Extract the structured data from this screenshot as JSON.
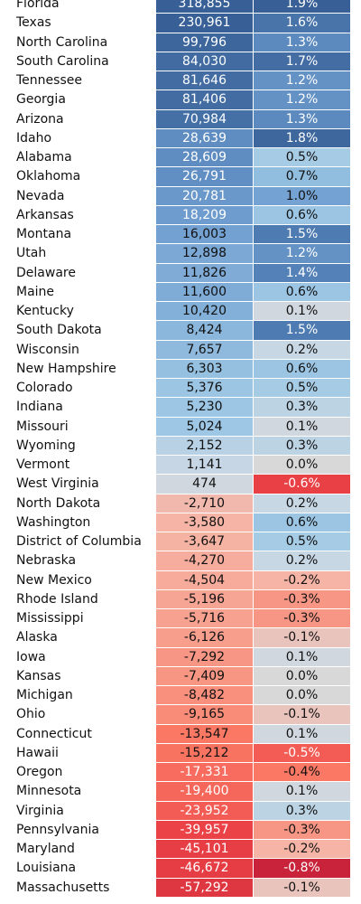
{
  "chart_data": {
    "type": "heatmap",
    "columns": [
      "value",
      "percent"
    ],
    "rows": [
      {
        "state": "Florida",
        "value": "318,855",
        "pct": "1.9%"
      },
      {
        "state": "Texas",
        "value": "230,961",
        "pct": "1.6%"
      },
      {
        "state": "North Carolina",
        "value": "99,796",
        "pct": "1.3%"
      },
      {
        "state": "South Carolina",
        "value": "84,030",
        "pct": "1.7%"
      },
      {
        "state": "Tennessee",
        "value": "81,646",
        "pct": "1.2%"
      },
      {
        "state": "Georgia",
        "value": "81,406",
        "pct": "1.2%"
      },
      {
        "state": "Arizona",
        "value": "70,984",
        "pct": "1.3%"
      },
      {
        "state": "Idaho",
        "value": "28,639",
        "pct": "1.8%"
      },
      {
        "state": "Alabama",
        "value": "28,609",
        "pct": "0.5%"
      },
      {
        "state": "Oklahoma",
        "value": "26,791",
        "pct": "0.7%"
      },
      {
        "state": "Nevada",
        "value": "20,781",
        "pct": "1.0%"
      },
      {
        "state": "Arkansas",
        "value": "18,209",
        "pct": "0.6%"
      },
      {
        "state": "Montana",
        "value": "16,003",
        "pct": "1.5%"
      },
      {
        "state": "Utah",
        "value": "12,898",
        "pct": "1.2%"
      },
      {
        "state": "Delaware",
        "value": "11,826",
        "pct": "1.4%"
      },
      {
        "state": "Maine",
        "value": "11,600",
        "pct": "0.6%"
      },
      {
        "state": "Kentucky",
        "value": "10,420",
        "pct": "0.1%"
      },
      {
        "state": "South Dakota",
        "value": "8,424",
        "pct": "1.5%"
      },
      {
        "state": "Wisconsin",
        "value": "7,657",
        "pct": "0.2%"
      },
      {
        "state": "New Hampshire",
        "value": "6,303",
        "pct": "0.6%"
      },
      {
        "state": "Colorado",
        "value": "5,376",
        "pct": "0.5%"
      },
      {
        "state": "Indiana",
        "value": "5,230",
        "pct": "0.3%"
      },
      {
        "state": "Missouri",
        "value": "5,024",
        "pct": "0.1%"
      },
      {
        "state": "Wyoming",
        "value": "2,152",
        "pct": "0.3%"
      },
      {
        "state": "Vermont",
        "value": "1,141",
        "pct": "0.0%"
      },
      {
        "state": "West Virginia",
        "value": "474",
        "pct": "-0.6%"
      },
      {
        "state": "North Dakota",
        "value": "-2,710",
        "pct": "0.2%"
      },
      {
        "state": "Washington",
        "value": "-3,580",
        "pct": "0.6%"
      },
      {
        "state": "District of Columbia",
        "value": "-3,647",
        "pct": "0.5%"
      },
      {
        "state": "Nebraska",
        "value": "-4,270",
        "pct": "0.2%"
      },
      {
        "state": "New Mexico",
        "value": "-4,504",
        "pct": "-0.2%"
      },
      {
        "state": "Rhode Island",
        "value": "-5,196",
        "pct": "-0.3%"
      },
      {
        "state": "Mississippi",
        "value": "-5,716",
        "pct": "-0.3%"
      },
      {
        "state": "Alaska",
        "value": "-6,126",
        "pct": "-0.1%"
      },
      {
        "state": "Iowa",
        "value": "-7,292",
        "pct": "0.1%"
      },
      {
        "state": "Kansas",
        "value": "-7,409",
        "pct": "0.0%"
      },
      {
        "state": "Michigan",
        "value": "-8,482",
        "pct": "0.0%"
      },
      {
        "state": "Ohio",
        "value": "-9,165",
        "pct": "-0.1%"
      },
      {
        "state": "Connecticut",
        "value": "-13,547",
        "pct": "0.1%"
      },
      {
        "state": "Hawaii",
        "value": "-15,212",
        "pct": "-0.5%"
      },
      {
        "state": "Oregon",
        "value": "-17,331",
        "pct": "-0.4%"
      },
      {
        "state": "Minnesota",
        "value": "-19,400",
        "pct": "0.1%"
      },
      {
        "state": "Virginia",
        "value": "-23,952",
        "pct": "0.3%"
      },
      {
        "state": "Pennsylvania",
        "value": "-39,957",
        "pct": "-0.3%"
      },
      {
        "state": "Maryland",
        "value": "-45,101",
        "pct": "-0.2%"
      },
      {
        "state": "Louisiana",
        "value": "-46,672",
        "pct": "-0.8%"
      },
      {
        "state": "Massachusetts",
        "value": "-57,292",
        "pct": "-0.1%"
      }
    ],
    "colors": {
      "strong_positive": "#3a659a",
      "neutral": "#dcdcdc",
      "strong_negative": "#c8233a"
    }
  }
}
